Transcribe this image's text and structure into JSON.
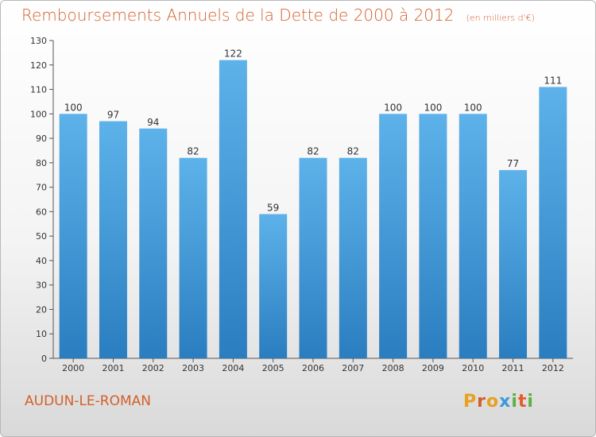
{
  "header": {
    "title": "Remboursements Annuels de la Dette de 2000 à 2012",
    "unit": "(en milliers d'€)"
  },
  "footer": {
    "commune": "AUDUN-LE-ROMAN",
    "logo": [
      "P",
      "r",
      "o",
      "x",
      "i",
      "t",
      "i"
    ]
  },
  "colors": {
    "title": "#d2602a",
    "bar_top": "#5eb2ea",
    "bar_bottom": "#2a7ec0",
    "logo": [
      "#e8a020",
      "#d2602a",
      "#e8a020",
      "#3a9ad9",
      "#5cb040",
      "#e85a2a",
      "#5cb040"
    ]
  },
  "chart_data": {
    "type": "bar",
    "categories": [
      "2000",
      "2001",
      "2002",
      "2003",
      "2004",
      "2005",
      "2006",
      "2007",
      "2008",
      "2009",
      "2010",
      "2011",
      "2012"
    ],
    "values": [
      100,
      97,
      94,
      82,
      122,
      59,
      82,
      82,
      100,
      100,
      100,
      77,
      111
    ],
    "data_labels": [
      "100",
      "97",
      "94",
      "82",
      "122",
      "59",
      "82",
      "82",
      "100",
      "100",
      "100",
      "77",
      "111"
    ],
    "yticks": [
      "0",
      "10",
      "20",
      "30",
      "40",
      "50",
      "60",
      "70",
      "80",
      "90",
      "100",
      "110",
      "120",
      "130"
    ],
    "ylim": [
      0,
      130
    ],
    "grid": false
  }
}
